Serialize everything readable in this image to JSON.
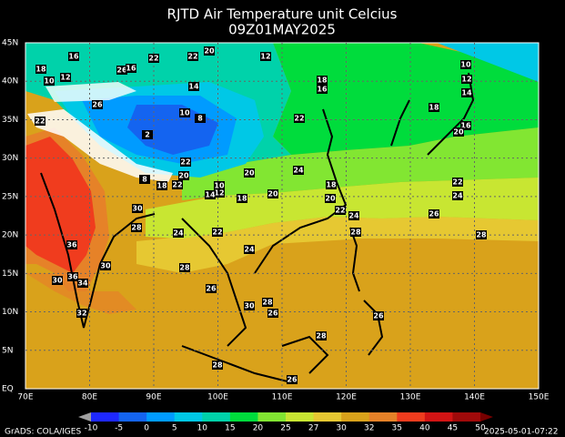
{
  "header": {
    "title": "RJTD Air Temperature unit Celcius",
    "subtitle": "09Z01MAY2025"
  },
  "map": {
    "lat_labels": [
      "EQ",
      "5N",
      "10N",
      "15N",
      "20N",
      "25N",
      "30N",
      "35N",
      "40N",
      "45N"
    ],
    "lon_labels": [
      "70E",
      "80E",
      "90E",
      "100E",
      "110E",
      "120E",
      "130E",
      "140E",
      "150E"
    ],
    "contour_labels": [
      18,
      16,
      12,
      10,
      26,
      16,
      22,
      22,
      20,
      12,
      10,
      12,
      14,
      18,
      16,
      14,
      26,
      10,
      8,
      22,
      18,
      16,
      20,
      22,
      2,
      22,
      20,
      18,
      22,
      10,
      12,
      14,
      8,
      20,
      24,
      18,
      20,
      18,
      20,
      22,
      24,
      30,
      28,
      22,
      24,
      26,
      28,
      28,
      24,
      22,
      36,
      30,
      24,
      28,
      36,
      34,
      30,
      26,
      28,
      30,
      26,
      32,
      26,
      28,
      28,
      26
    ]
  },
  "colorbar": {
    "levels": [
      -10,
      -5,
      0,
      5,
      10,
      15,
      20,
      25,
      27,
      30,
      32,
      35,
      40,
      45,
      50
    ],
    "colors": [
      "#a0a0a0",
      "#1e28ff",
      "#1464f0",
      "#009bff",
      "#00c8e6",
      "#00d2aa",
      "#00dc3c",
      "#82e632",
      "#c8e632",
      "#e6c832",
      "#d9a21b",
      "#e68228",
      "#f03c1e",
      "#d21414",
      "#a00a0a",
      "#780000"
    ]
  },
  "footer": {
    "credit": "GrADS: COLA/IGES",
    "timestamp": "2025-05-01-07:22"
  }
}
